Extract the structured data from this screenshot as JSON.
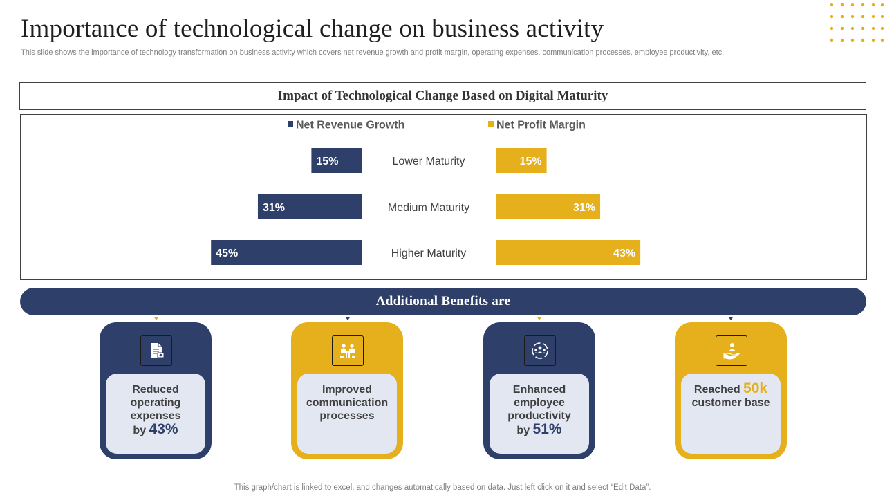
{
  "page": {
    "title": "Importance of technological change on business activity",
    "subtitle": "This slide shows the importance of technology transformation on business activity which covers net revenue growth and profit margin, operating expenses, communication processes, employee productivity, etc.",
    "footer": "This graph/chart is linked to excel,  and changes automatically based on data. Just left click on it and select “Edit Data”."
  },
  "colors": {
    "navy": "#2e3f6a",
    "gold": "#e5b01b",
    "inner": "#e3e7f2"
  },
  "chart_data": {
    "type": "bar",
    "orientation": "horizontal-butterfly",
    "title": "Impact of Technological Change Based on Digital Maturity",
    "categories": [
      "Lower Maturity",
      "Medium Maturity",
      "Higher Maturity"
    ],
    "series": [
      {
        "name": "Net Revenue Growth",
        "values": [
          15,
          31,
          45
        ],
        "labels": [
          "15%",
          "31%",
          "45%"
        ],
        "color": "#2e3f6a"
      },
      {
        "name": "Net Profit Margin",
        "values": [
          15,
          31,
          43
        ],
        "labels": [
          "15%",
          "31%",
          "43%"
        ],
        "color": "#e5b01b"
      }
    ],
    "value_unit": "%",
    "legend": "top-center",
    "grid": false
  },
  "benefits": {
    "heading": "Additional  Benefits are",
    "cards": [
      {
        "icon": "document-money-icon",
        "lines": [
          "Reduced",
          "operating",
          "expenses"
        ],
        "pre": "by ",
        "value": "43%",
        "post": ""
      },
      {
        "icon": "meeting-icon",
        "lines": [
          "Improved",
          "communication",
          "processes"
        ],
        "pre": "",
        "value": "",
        "post": ""
      },
      {
        "icon": "team-cycle-icon",
        "lines": [
          "Enhanced",
          "employee",
          "productivity"
        ],
        "pre": "by ",
        "value": "51%",
        "post": ""
      },
      {
        "icon": "hand-person-icon",
        "lines": [],
        "pre": "Reached ",
        "value": "50k",
        "post": "customer base"
      }
    ]
  }
}
